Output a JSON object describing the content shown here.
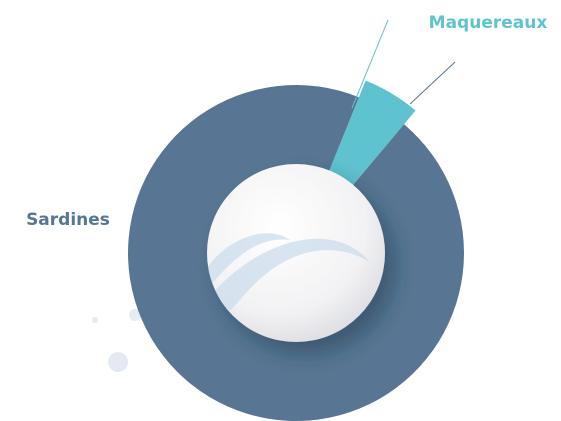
{
  "chart_data": {
    "type": "pie",
    "categories": [
      "Maquereaux",
      "Sardines"
    ],
    "values": [
      5,
      95
    ],
    "colors": [
      "#5fc3cf",
      "#587693"
    ]
  }
}
